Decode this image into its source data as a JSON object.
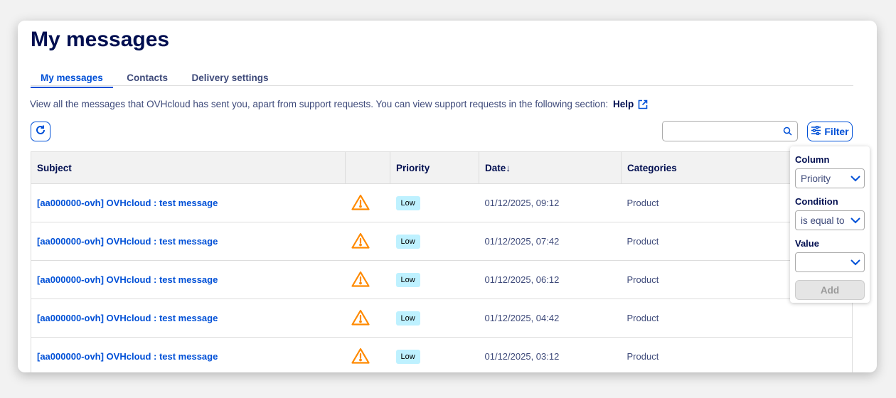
{
  "title": "My messages",
  "tabs": [
    {
      "label": "My messages",
      "active": true
    },
    {
      "label": "Contacts"
    },
    {
      "label": "Delivery settings"
    }
  ],
  "description": "View all the messages that OVHcloud has sent you, apart from support requests. You can view support requests in the following section:",
  "help_link": "Help",
  "search": {
    "placeholder": "",
    "value": ""
  },
  "filter_label": "Filter",
  "columns": [
    "Subject",
    "",
    "Priority",
    "Date↓",
    "Categories"
  ],
  "rows": [
    {
      "subject": "[aa000000-ovh] OVHcloud : test message",
      "icon": "warning-icon",
      "priority": "Low",
      "date": "01/12/2025, 09:12",
      "category": "Product"
    },
    {
      "subject": "[aa000000-ovh] OVHcloud : test message",
      "icon": "warning-icon",
      "priority": "Low",
      "date": "01/12/2025, 07:42",
      "category": "Product"
    },
    {
      "subject": "[aa000000-ovh] OVHcloud : test message",
      "icon": "warning-icon",
      "priority": "Low",
      "date": "01/12/2025, 06:12",
      "category": "Product"
    },
    {
      "subject": "[aa000000-ovh] OVHcloud : test message",
      "icon": "warning-icon",
      "priority": "Low",
      "date": "01/12/2025, 04:42",
      "category": "Product"
    },
    {
      "subject": "[aa000000-ovh] OVHcloud : test message",
      "icon": "warning-icon",
      "priority": "Low",
      "date": "01/12/2025, 03:12",
      "category": "Product"
    }
  ],
  "filter_panel": {
    "column_label": "Column",
    "column_value": "Priority",
    "condition_label": "Condition",
    "condition_value": "is equal to",
    "value_label": "Value",
    "value_value": "",
    "add_label": "Add"
  },
  "colors": {
    "accent": "#0050d7",
    "title": "#000e50",
    "warning": "#ff8a00",
    "badge": "#bef1ff"
  }
}
